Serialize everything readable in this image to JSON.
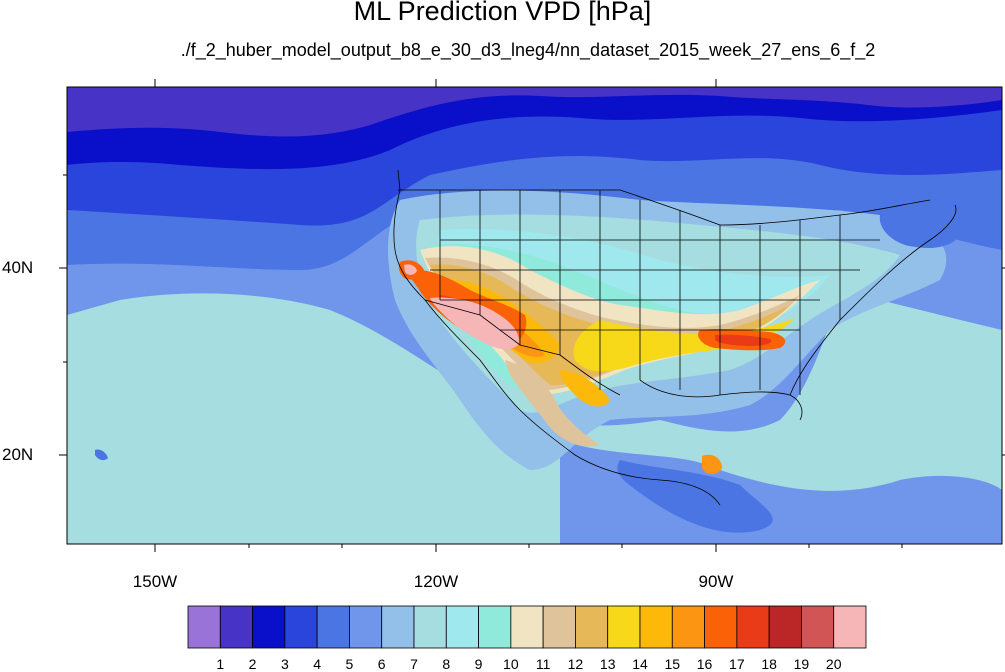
{
  "title": "ML Prediction VPD [hPa]",
  "subtitle": "./f_2_huber_model_output_b8_e_30_d3_lneg4/nn_dataset_2015_week_27_ens_6_f_2",
  "map": {
    "lat_labels": [
      "40N",
      "20N"
    ],
    "lon_labels": [
      "150W",
      "120W",
      "90W"
    ],
    "colors": {
      "frame": "#000000",
      "borders": "#000000",
      "background": "#a5dde0"
    }
  },
  "colorbar": {
    "labels": [
      "1",
      "2",
      "3",
      "4",
      "5",
      "6",
      "7",
      "8",
      "9",
      "10",
      "11",
      "12",
      "13",
      "14",
      "15",
      "16",
      "17",
      "18",
      "19",
      "20"
    ],
    "colors": [
      "#9a73d8",
      "#4733c6",
      "#0a10c9",
      "#2a45dc",
      "#4a75e2",
      "#6f96ea",
      "#93c0e9",
      "#a5dde0",
      "#9fe8ee",
      "#90eadc",
      "#f1e4c3",
      "#dfc39a",
      "#e7b858",
      "#f8d91a",
      "#fcb90a",
      "#fb9512",
      "#fb6106",
      "#e93b17",
      "#bb2626",
      "#d25555",
      "#f6b5b7"
    ]
  }
}
